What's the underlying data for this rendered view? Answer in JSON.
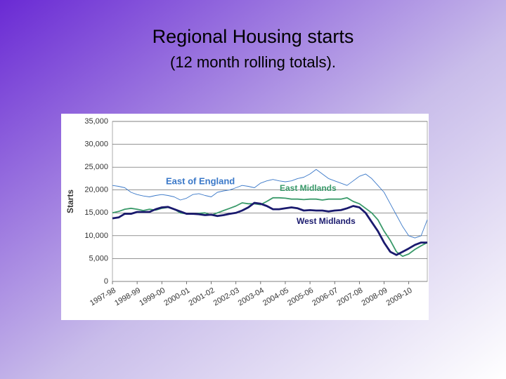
{
  "chart_data": {
    "type": "line",
    "title": "Regional Housing starts",
    "subtitle": "(12 month rolling totals).",
    "y_label": "Starts",
    "categories": [
      "1997-98",
      null,
      null,
      null,
      "1998-99",
      null,
      null,
      null,
      "1999-00",
      null,
      null,
      null,
      "2000-01",
      null,
      null,
      null,
      "2001-02",
      null,
      null,
      null,
      "2002-03",
      null,
      null,
      null,
      "2003-04",
      null,
      null,
      null,
      "2004-05",
      null,
      null,
      null,
      "2005-06",
      null,
      null,
      null,
      "2006-07",
      null,
      null,
      null,
      "2007-08",
      null,
      null,
      null,
      "2008-09",
      null,
      null,
      null,
      "2009-10",
      null,
      null,
      null
    ],
    "series": [
      {
        "name": "East of England",
        "color": "#3a78c8",
        "values": [
          21000,
          20800,
          20500,
          19500,
          19000,
          18700,
          18500,
          18800,
          19000,
          18800,
          18500,
          17800,
          18200,
          19000,
          19200,
          18800,
          18500,
          19500,
          19800,
          20000,
          20500,
          21000,
          20800,
          20500,
          21500,
          22000,
          22300,
          22000,
          21800,
          22000,
          22500,
          22800,
          23500,
          24500,
          23500,
          22500,
          22000,
          21500,
          21000,
          22000,
          23000,
          23500,
          22500,
          21000,
          19500,
          17000,
          14500,
          12000,
          10000,
          9500,
          10000,
          13500
        ]
      },
      {
        "name": "East Midlands",
        "color": "#3a9a6a",
        "values": [
          15000,
          15300,
          15800,
          16000,
          15800,
          15500,
          15800,
          15600,
          16000,
          16200,
          15800,
          15000,
          14800,
          14700,
          14900,
          15000,
          14500,
          15000,
          15500,
          16000,
          16500,
          17200,
          17000,
          17000,
          16800,
          17500,
          18300,
          18300,
          18200,
          18000,
          18000,
          17900,
          18000,
          18000,
          17800,
          18000,
          18000,
          18000,
          18300,
          17500,
          17000,
          16000,
          15000,
          13500,
          11000,
          9000,
          6500,
          5500,
          6000,
          7000,
          7800,
          8500
        ]
      },
      {
        "name": "West Midlands",
        "color": "#1a1a6e",
        "values": [
          13800,
          14000,
          14800,
          14800,
          15200,
          15200,
          15200,
          15800,
          16200,
          16300,
          15800,
          15300,
          14800,
          14800,
          14700,
          14500,
          14600,
          14300,
          14500,
          14800,
          15000,
          15500,
          16200,
          17200,
          17000,
          16500,
          15800,
          15800,
          16000,
          16200,
          16000,
          15500,
          15600,
          15500,
          15500,
          15300,
          15500,
          15600,
          16000,
          16500,
          16200,
          15000,
          13000,
          11000,
          8500,
          6500,
          5800,
          6500,
          7200,
          8000,
          8500,
          8500
        ]
      }
    ],
    "ylim": [
      0,
      35000
    ],
    "yticks": [
      0,
      {
        "value": 5000,
        "label": "5,000"
      },
      {
        "value": 10000,
        "label": "10,000"
      },
      {
        "value": 15000,
        "label": "15,000"
      },
      {
        "value": 20000,
        "label": "20,000"
      },
      {
        "value": 25000,
        "label": "25,000"
      },
      {
        "value": 30000,
        "label": "30,000"
      },
      {
        "value": 35000,
        "label": "35,000"
      }
    ],
    "grid": true
  }
}
